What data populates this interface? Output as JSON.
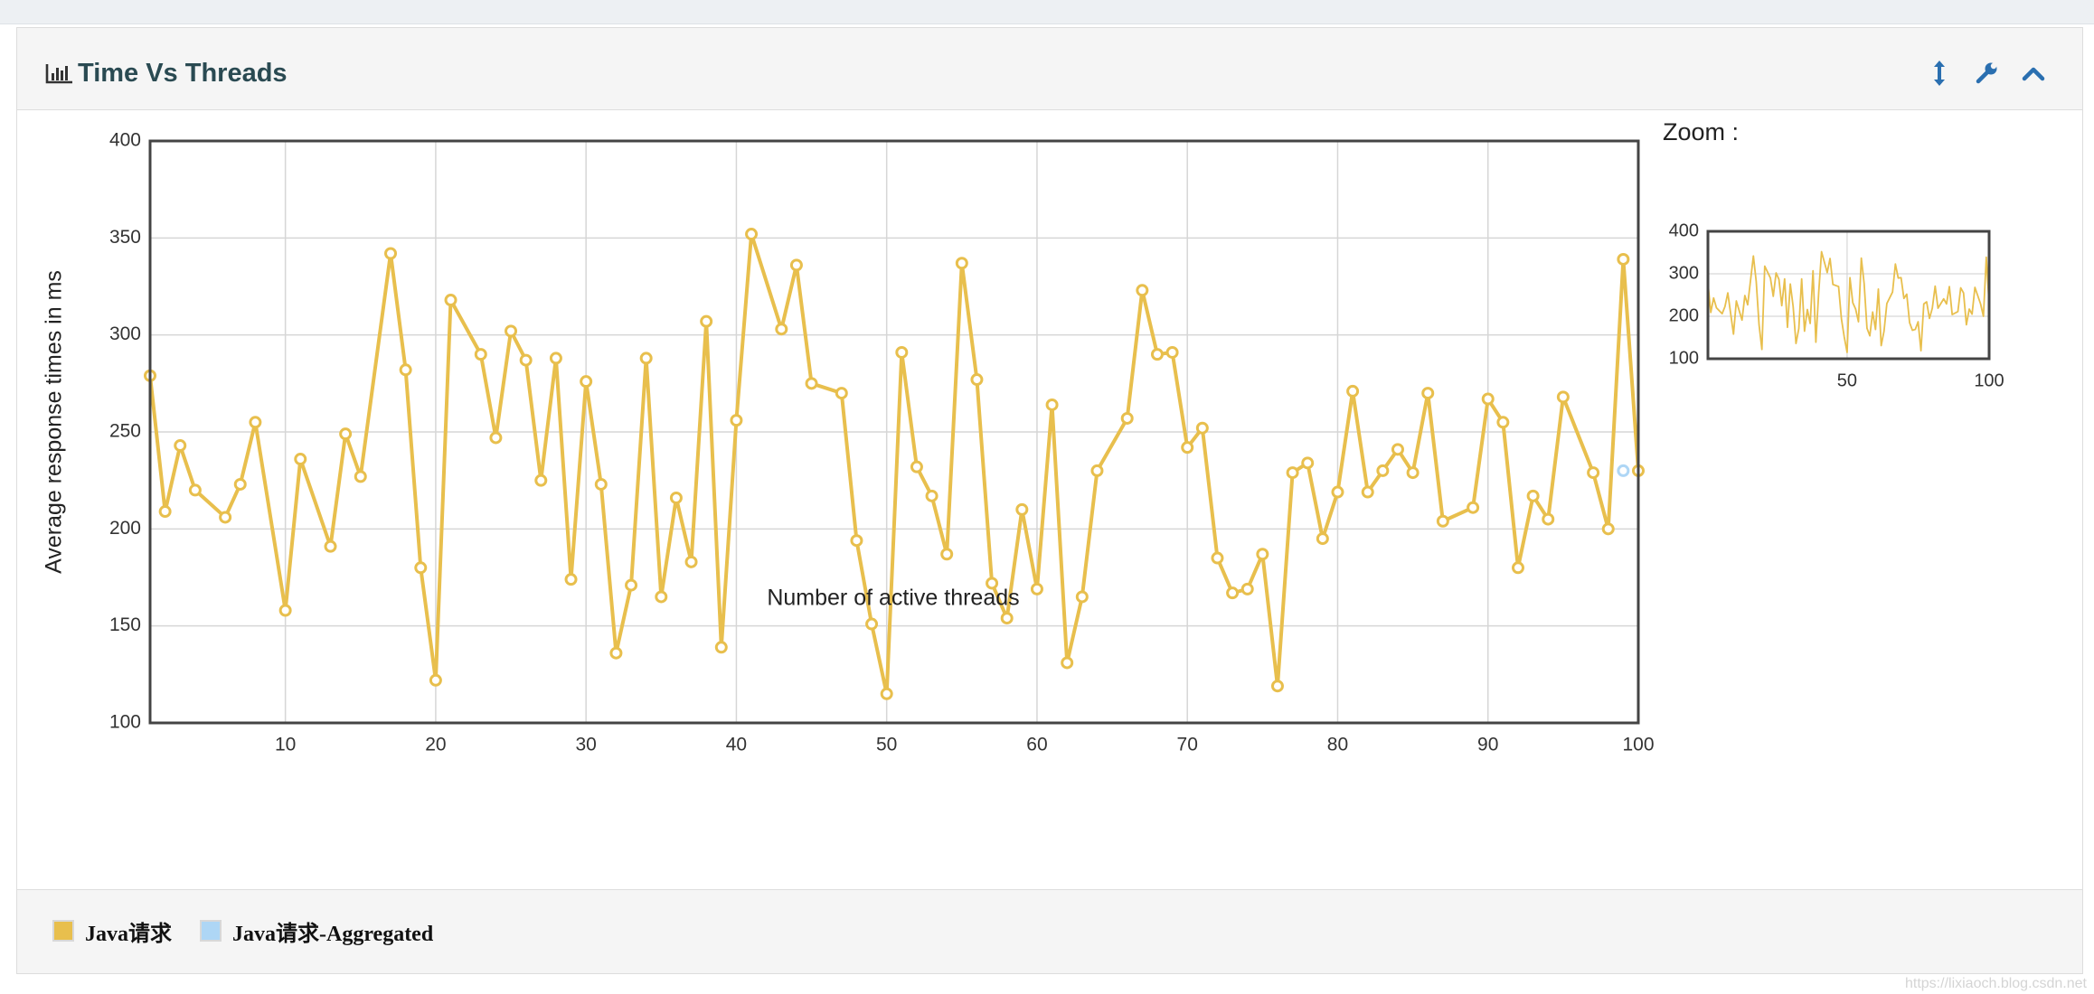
{
  "panel": {
    "title": "Time Vs Threads",
    "icons": {
      "title": "bar-chart-icon",
      "resize": "vertical-resize-icon",
      "settings": "wrench-icon",
      "collapse": "chevron-up-icon"
    }
  },
  "zoom": {
    "label": "Zoom :"
  },
  "watermark": "https://lixiaoch.blog.csdn.net",
  "chart_data": {
    "type": "line",
    "title": "",
    "xlabel": "Number of active threads",
    "ylabel": "Average response times in ms",
    "xlim": [
      1,
      100
    ],
    "ylim": [
      100,
      400
    ],
    "xticks": [
      10,
      20,
      30,
      40,
      50,
      60,
      70,
      80,
      90,
      100
    ],
    "yticks": [
      100,
      150,
      200,
      250,
      300,
      350,
      400
    ],
    "grid": true,
    "legend_position": "bottom",
    "series": [
      {
        "name": "Java请求",
        "color": "#e8bf4d",
        "points": [
          [
            1,
            279
          ],
          [
            2,
            209
          ],
          [
            3,
            243
          ],
          [
            4,
            220
          ],
          [
            6,
            206
          ],
          [
            7,
            223
          ],
          [
            8,
            255
          ],
          [
            10,
            158
          ],
          [
            11,
            236
          ],
          [
            13,
            191
          ],
          [
            14,
            249
          ],
          [
            15,
            227
          ],
          [
            17,
            342
          ],
          [
            18,
            282
          ],
          [
            19,
            180
          ],
          [
            20,
            122
          ],
          [
            21,
            318
          ],
          [
            23,
            290
          ],
          [
            24,
            247
          ],
          [
            25,
            302
          ],
          [
            26,
            287
          ],
          [
            27,
            225
          ],
          [
            28,
            288
          ],
          [
            29,
            174
          ],
          [
            30,
            276
          ],
          [
            31,
            223
          ],
          [
            32,
            136
          ],
          [
            33,
            171
          ],
          [
            34,
            288
          ],
          [
            35,
            165
          ],
          [
            36,
            216
          ],
          [
            37,
            183
          ],
          [
            38,
            307
          ],
          [
            39,
            139
          ],
          [
            40,
            256
          ],
          [
            41,
            352
          ],
          [
            43,
            303
          ],
          [
            44,
            336
          ],
          [
            45,
            275
          ],
          [
            47,
            270
          ],
          [
            48,
            194
          ],
          [
            49,
            151
          ],
          [
            50,
            115
          ],
          [
            51,
            291
          ],
          [
            52,
            232
          ],
          [
            53,
            217
          ],
          [
            54,
            187
          ],
          [
            55,
            337
          ],
          [
            56,
            277
          ],
          [
            57,
            172
          ],
          [
            58,
            154
          ],
          [
            59,
            210
          ],
          [
            60,
            169
          ],
          [
            61,
            264
          ],
          [
            62,
            131
          ],
          [
            63,
            165
          ],
          [
            64,
            230
          ],
          [
            66,
            257
          ],
          [
            67,
            323
          ],
          [
            68,
            290
          ],
          [
            69,
            291
          ],
          [
            70,
            242
          ],
          [
            71,
            252
          ],
          [
            72,
            185
          ],
          [
            73,
            167
          ],
          [
            74,
            169
          ],
          [
            75,
            187
          ],
          [
            76,
            119
          ],
          [
            77,
            229
          ],
          [
            78,
            234
          ],
          [
            79,
            195
          ],
          [
            80,
            219
          ],
          [
            81,
            271
          ],
          [
            82,
            219
          ],
          [
            83,
            230
          ],
          [
            84,
            241
          ],
          [
            85,
            229
          ],
          [
            86,
            270
          ],
          [
            87,
            204
          ],
          [
            89,
            211
          ],
          [
            90,
            267
          ],
          [
            91,
            255
          ],
          [
            92,
            180
          ],
          [
            93,
            217
          ],
          [
            94,
            205
          ],
          [
            95,
            268
          ],
          [
            97,
            229
          ],
          [
            98,
            200
          ],
          [
            99,
            339
          ],
          [
            100,
            230
          ]
        ]
      },
      {
        "name": "Java请求-Aggregated",
        "color": "#aed6f5",
        "points": [
          [
            99,
            230
          ]
        ]
      }
    ],
    "zoom_chart": {
      "xlim": [
        1,
        100
      ],
      "ylim": [
        100,
        400
      ],
      "xticks": [
        50,
        100
      ],
      "yticks": [
        100,
        200,
        300,
        400
      ]
    }
  }
}
